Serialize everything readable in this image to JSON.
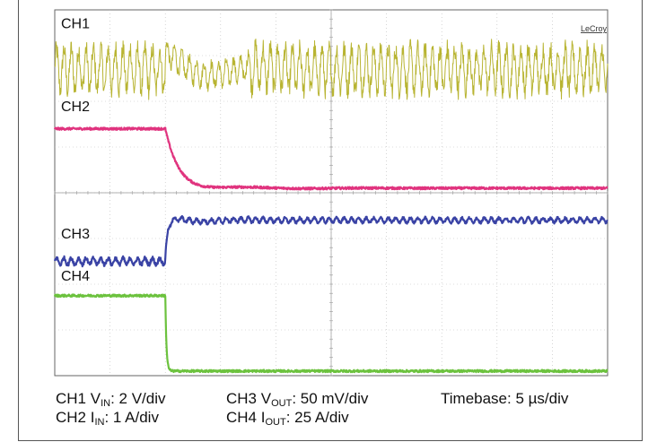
{
  "chart_data": {
    "type": "line",
    "brand": "LeCroy",
    "x_divisions": 10,
    "y_divisions": 8,
    "timebase_label": "Timebase: 5 µs/div",
    "step_time_div": 2.0,
    "series": [
      {
        "name": "CH1",
        "color": "#b8b432",
        "style": "noisy-ripple",
        "pre_level_div": 6.7,
        "post_level_div": 6.7,
        "ripple_div": 0.5
      },
      {
        "name": "CH2",
        "color": "#e0337e",
        "style": "step-down",
        "pre_level_div": 5.4,
        "post_level_div": 4.1
      },
      {
        "name": "CH3",
        "color": "#3a43a5",
        "style": "step-up-ripple",
        "pre_level_div": 2.5,
        "post_level_div": 3.4,
        "ripple_div": 0.12
      },
      {
        "name": "CH4",
        "color": "#6cc23e",
        "style": "step-down",
        "pre_level_div": 1.75,
        "post_level_div": 0.1
      }
    ]
  },
  "captions": {
    "ch1_prefix": "CH1 V",
    "ch1_sub": "IN",
    "ch1_suffix": ": 2 V/div",
    "ch2_prefix": "CH2 I",
    "ch2_sub": "IN",
    "ch2_suffix": ": 1 A/div",
    "ch3_prefix": "CH3 V",
    "ch3_sub": "OUT",
    "ch3_suffix": ": 50 mV/div",
    "ch4_prefix": "CH4 I",
    "ch4_sub": "OUT",
    "ch4_suffix": ": 25 A/div",
    "timebase": "Timebase: 5 µs/div"
  }
}
